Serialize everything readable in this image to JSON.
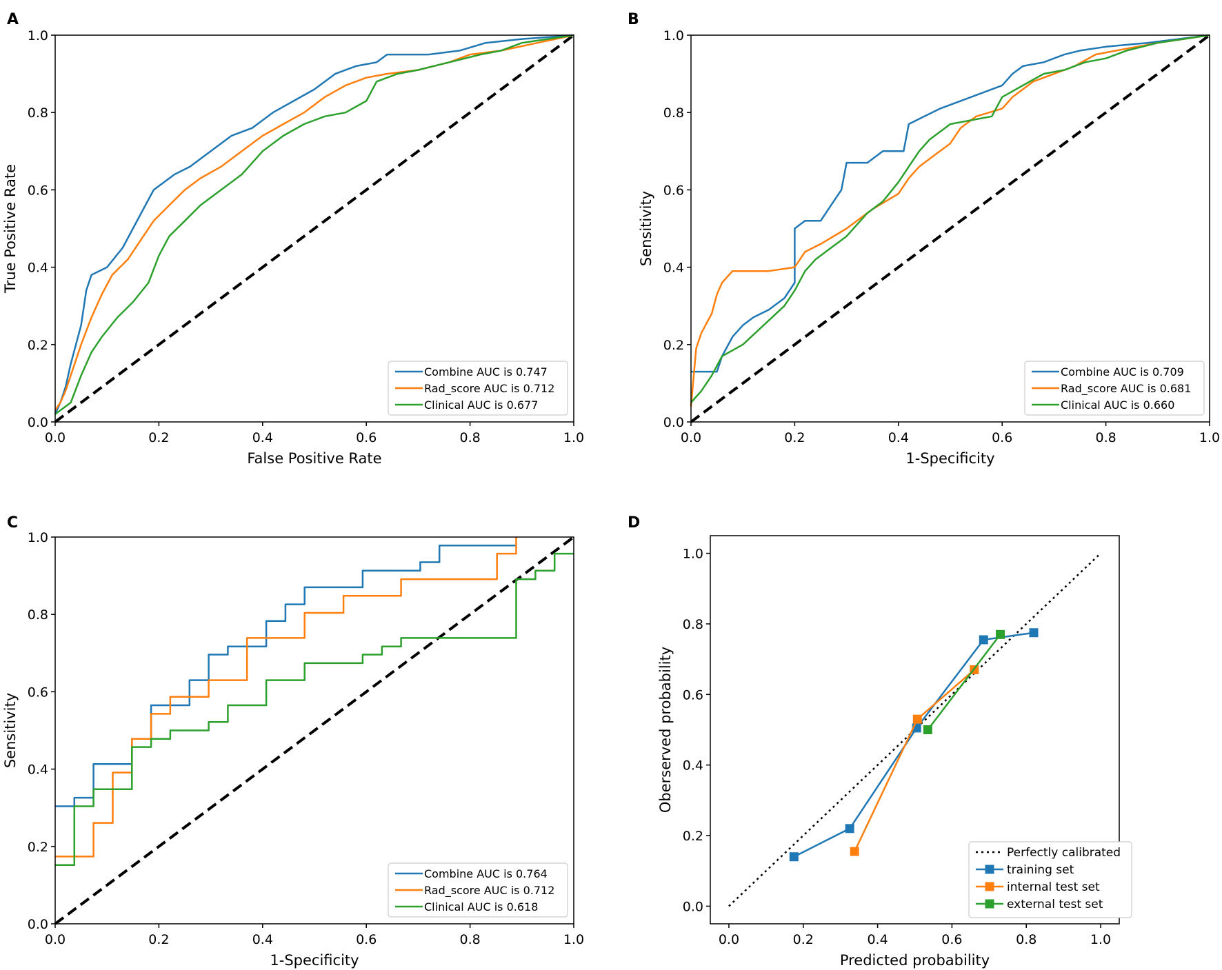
{
  "colors": {
    "combine": "#1f77b4",
    "rad_score": "#ff7f0e",
    "clinical": "#2ca02c",
    "reference": "#000000"
  },
  "chart_data": [
    {
      "panel": "A",
      "type": "line",
      "xlabel": "False Positive Rate",
      "ylabel": "True Positive Rate",
      "xlim": [
        0,
        1
      ],
      "ylim": [
        0,
        1
      ],
      "xticks": [
        "0.0",
        "0.2",
        "0.4",
        "0.6",
        "0.8",
        "1.0"
      ],
      "yticks": [
        "0.0",
        "0.2",
        "0.4",
        "0.6",
        "0.8",
        "1.0"
      ],
      "legend_position": "lower-right",
      "reference_line": {
        "x": [
          0,
          1
        ],
        "y": [
          0,
          1
        ],
        "style": "dashed"
      },
      "series": [
        {
          "name": "Combine AUC is 0.747",
          "color": "#1f77b4",
          "x": [
            0,
            0.01,
            0.02,
            0.03,
            0.04,
            0.05,
            0.06,
            0.07,
            0.1,
            0.13,
            0.15,
            0.17,
            0.19,
            0.21,
            0.23,
            0.26,
            0.3,
            0.34,
            0.38,
            0.42,
            0.46,
            0.5,
            0.54,
            0.58,
            0.62,
            0.64,
            0.68,
            0.72,
            0.78,
            0.83,
            0.9,
            1.0
          ],
          "y": [
            0.02,
            0.05,
            0.09,
            0.15,
            0.2,
            0.25,
            0.34,
            0.38,
            0.4,
            0.45,
            0.5,
            0.55,
            0.6,
            0.62,
            0.64,
            0.66,
            0.7,
            0.74,
            0.76,
            0.8,
            0.83,
            0.86,
            0.9,
            0.92,
            0.93,
            0.95,
            0.95,
            0.95,
            0.96,
            0.98,
            0.99,
            1.0
          ]
        },
        {
          "name": "Rad_score AUC is 0.712",
          "color": "#ff7f0e",
          "x": [
            0,
            0.01,
            0.02,
            0.03,
            0.05,
            0.07,
            0.09,
            0.11,
            0.14,
            0.17,
            0.19,
            0.22,
            0.25,
            0.28,
            0.32,
            0.36,
            0.4,
            0.44,
            0.48,
            0.52,
            0.56,
            0.6,
            0.64,
            0.7,
            0.76,
            0.8,
            0.86,
            0.93,
            1.0
          ],
          "y": [
            0.03,
            0.05,
            0.08,
            0.12,
            0.2,
            0.27,
            0.33,
            0.38,
            0.42,
            0.48,
            0.52,
            0.56,
            0.6,
            0.63,
            0.66,
            0.7,
            0.74,
            0.77,
            0.8,
            0.84,
            0.87,
            0.89,
            0.9,
            0.91,
            0.93,
            0.95,
            0.96,
            0.98,
            1.0
          ]
        },
        {
          "name": "Clinical AUC is 0.677",
          "color": "#2ca02c",
          "x": [
            0,
            0.03,
            0.05,
            0.07,
            0.09,
            0.12,
            0.15,
            0.18,
            0.2,
            0.22,
            0.25,
            0.28,
            0.32,
            0.36,
            0.4,
            0.44,
            0.48,
            0.52,
            0.56,
            0.6,
            0.62,
            0.66,
            0.7,
            0.76,
            0.82,
            0.86,
            0.9,
            0.95,
            1.0
          ],
          "y": [
            0.02,
            0.05,
            0.12,
            0.18,
            0.22,
            0.27,
            0.31,
            0.36,
            0.43,
            0.48,
            0.52,
            0.56,
            0.6,
            0.64,
            0.7,
            0.74,
            0.77,
            0.79,
            0.8,
            0.83,
            0.88,
            0.9,
            0.91,
            0.93,
            0.95,
            0.96,
            0.98,
            0.99,
            1.0
          ]
        }
      ]
    },
    {
      "panel": "B",
      "type": "line",
      "xlabel": "1-Specificity",
      "ylabel": "Sensitivity",
      "xlim": [
        0,
        1
      ],
      "ylim": [
        0,
        1
      ],
      "xticks": [
        "0.0",
        "0.2",
        "0.4",
        "0.6",
        "0.8",
        "1.0"
      ],
      "yticks": [
        "0.0",
        "0.2",
        "0.4",
        "0.6",
        "0.8",
        "1.0"
      ],
      "legend_position": "lower-right",
      "reference_line": {
        "x": [
          0,
          1
        ],
        "y": [
          0,
          1
        ],
        "style": "dashed"
      },
      "series": [
        {
          "name": "Combine AUC is 0.709",
          "color": "#1f77b4",
          "x": [
            0,
            0.05,
            0.06,
            0.08,
            0.1,
            0.12,
            0.15,
            0.18,
            0.2,
            0.2,
            0.22,
            0.25,
            0.27,
            0.29,
            0.3,
            0.32,
            0.34,
            0.37,
            0.39,
            0.41,
            0.42,
            0.45,
            0.48,
            0.52,
            0.56,
            0.6,
            0.62,
            0.64,
            0.68,
            0.72,
            0.75,
            0.8,
            0.88,
            1.0
          ],
          "y": [
            0.13,
            0.13,
            0.17,
            0.22,
            0.25,
            0.27,
            0.29,
            0.32,
            0.36,
            0.5,
            0.52,
            0.52,
            0.56,
            0.6,
            0.67,
            0.67,
            0.67,
            0.7,
            0.7,
            0.7,
            0.77,
            0.79,
            0.81,
            0.83,
            0.85,
            0.87,
            0.9,
            0.92,
            0.93,
            0.95,
            0.96,
            0.97,
            0.98,
            1.0
          ]
        },
        {
          "name": "Rad_score AUC is 0.681",
          "color": "#ff7f0e",
          "x": [
            0,
            0.01,
            0.02,
            0.04,
            0.05,
            0.06,
            0.08,
            0.1,
            0.15,
            0.2,
            0.22,
            0.25,
            0.3,
            0.35,
            0.4,
            0.42,
            0.44,
            0.47,
            0.5,
            0.52,
            0.55,
            0.6,
            0.62,
            0.66,
            0.7,
            0.74,
            0.78,
            0.82,
            0.86,
            0.9,
            0.95,
            1.0
          ],
          "y": [
            0.04,
            0.19,
            0.23,
            0.28,
            0.33,
            0.36,
            0.39,
            0.39,
            0.39,
            0.4,
            0.44,
            0.46,
            0.5,
            0.55,
            0.59,
            0.63,
            0.66,
            0.69,
            0.72,
            0.76,
            0.79,
            0.81,
            0.84,
            0.88,
            0.9,
            0.92,
            0.95,
            0.96,
            0.97,
            0.98,
            0.99,
            1.0
          ]
        },
        {
          "name": "Clinical AUC is 0.660",
          "color": "#2ca02c",
          "x": [
            0,
            0.02,
            0.04,
            0.06,
            0.1,
            0.14,
            0.18,
            0.2,
            0.22,
            0.24,
            0.27,
            0.3,
            0.34,
            0.37,
            0.4,
            0.42,
            0.44,
            0.46,
            0.48,
            0.5,
            0.54,
            0.58,
            0.6,
            0.64,
            0.68,
            0.72,
            0.76,
            0.8,
            0.84,
            0.9,
            1.0
          ],
          "y": [
            0.05,
            0.08,
            0.12,
            0.17,
            0.2,
            0.25,
            0.3,
            0.34,
            0.39,
            0.42,
            0.45,
            0.48,
            0.54,
            0.57,
            0.62,
            0.66,
            0.7,
            0.73,
            0.75,
            0.77,
            0.78,
            0.79,
            0.84,
            0.87,
            0.9,
            0.91,
            0.93,
            0.94,
            0.96,
            0.98,
            1.0
          ]
        }
      ]
    },
    {
      "panel": "C",
      "type": "line",
      "xlabel": "1-Specificity",
      "ylabel": "Sensitivity",
      "xlim": [
        0,
        1
      ],
      "ylim": [
        0,
        1
      ],
      "xticks": [
        "0.0",
        "0.2",
        "0.4",
        "0.6",
        "0.8",
        "1.0"
      ],
      "yticks": [
        "0.0",
        "0.2",
        "0.4",
        "0.6",
        "0.8",
        "1.0"
      ],
      "legend_position": "lower-right",
      "reference_line": {
        "x": [
          0,
          1
        ],
        "y": [
          0,
          1
        ],
        "style": "dashed"
      },
      "series": [
        {
          "name": "Combine AUC is 0.764",
          "color": "#1f77b4",
          "x": [
            0,
            0.037,
            0.074,
            0.148,
            0.185,
            0.259,
            0.296,
            0.333,
            0.407,
            0.444,
            0.481,
            0.593,
            0.704,
            0.741,
            0.889
          ],
          "y": [
            0.304,
            0.326,
            0.413,
            0.478,
            0.565,
            0.63,
            0.696,
            0.717,
            0.783,
            0.826,
            0.87,
            0.913,
            0.935,
            0.978,
            0.978
          ],
          "step": true
        },
        {
          "name": "Rad_score AUC is 0.712",
          "color": "#ff7f0e",
          "x": [
            0,
            0.074,
            0.111,
            0.148,
            0.185,
            0.222,
            0.296,
            0.37,
            0.481,
            0.556,
            0.667,
            0.852,
            0.889,
            0.889
          ],
          "y": [
            0.174,
            0.261,
            0.391,
            0.478,
            0.543,
            0.587,
            0.63,
            0.739,
            0.804,
            0.848,
            0.891,
            0.957,
            0.978,
            1.0
          ],
          "step": true
        },
        {
          "name": "Clinical AUC is 0.618",
          "color": "#2ca02c",
          "x": [
            0,
            0.037,
            0.074,
            0.148,
            0.185,
            0.222,
            0.296,
            0.333,
            0.407,
            0.481,
            0.593,
            0.63,
            0.667,
            0.889,
            0.926,
            0.963,
            1.0
          ],
          "y": [
            0.152,
            0.304,
            0.348,
            0.457,
            0.478,
            0.5,
            0.522,
            0.565,
            0.63,
            0.674,
            0.696,
            0.717,
            0.739,
            0.891,
            0.913,
            0.957,
            0.957
          ],
          "step": true
        }
      ]
    },
    {
      "panel": "D",
      "type": "line",
      "xlabel": "Predicted probability",
      "ylabel": "Oberserved probability",
      "xlim": [
        -0.05,
        1.05
      ],
      "ylim": [
        -0.05,
        1.05
      ],
      "xticks": [
        "0.0",
        "0.2",
        "0.4",
        "0.6",
        "0.8",
        "1.0"
      ],
      "yticks": [
        "0.0",
        "0.2",
        "0.4",
        "0.6",
        "0.8",
        "1.0"
      ],
      "legend_position": "lower-right",
      "reference_line": {
        "name": "Perfectly calibrated",
        "x": [
          0,
          1
        ],
        "y": [
          0,
          1
        ],
        "style": "dotted"
      },
      "series": [
        {
          "name": "training set",
          "color": "#1f77b4",
          "marker": "square",
          "x": [
            0.175,
            0.325,
            0.505,
            0.685,
            0.82
          ],
          "y": [
            0.14,
            0.22,
            0.505,
            0.755,
            0.775
          ]
        },
        {
          "name": "internal test set",
          "color": "#ff7f0e",
          "marker": "square",
          "x": [
            0.338,
            0.507,
            0.66
          ],
          "y": [
            0.155,
            0.53,
            0.67
          ]
        },
        {
          "name": "external test set",
          "color": "#2ca02c",
          "marker": "square",
          "x": [
            0.535,
            0.73
          ],
          "y": [
            0.5,
            0.77
          ]
        }
      ]
    }
  ]
}
